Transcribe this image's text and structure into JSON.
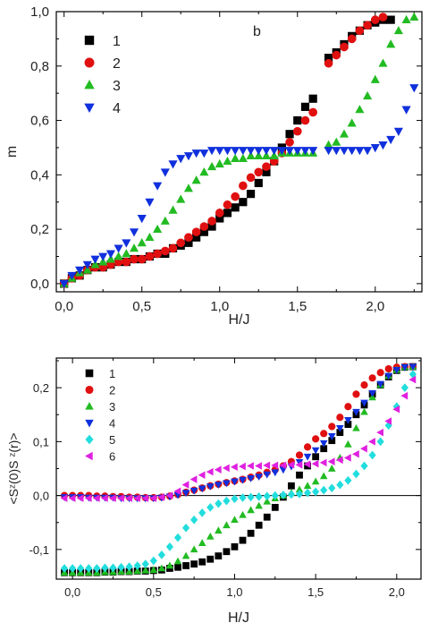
{
  "chart_data": [
    {
      "type": "scatter",
      "panel_label": "b",
      "xlabel": "H/J",
      "ylabel": "m",
      "xlim": [
        -0.05,
        2.3
      ],
      "ylim": [
        -0.03,
        1.0
      ],
      "xticks": [
        "0,0",
        "0,5",
        "1,0",
        "1,5",
        "2,0"
      ],
      "yticks": [
        "0,0",
        "0,2",
        "0,4",
        "0,6",
        "0,8",
        "1,0"
      ],
      "legend_position": "top-left",
      "series": [
        {
          "name": "1",
          "color": "#000000",
          "marker": "square",
          "x": [
            0.0,
            0.05,
            0.1,
            0.15,
            0.2,
            0.25,
            0.3,
            0.35,
            0.4,
            0.45,
            0.5,
            0.55,
            0.6,
            0.65,
            0.7,
            0.75,
            0.8,
            0.85,
            0.9,
            0.95,
            1.0,
            1.05,
            1.1,
            1.15,
            1.2,
            1.25,
            1.3,
            1.35,
            1.4,
            1.45,
            1.5,
            1.55,
            1.6,
            1.7,
            1.75,
            1.8,
            1.85,
            1.9,
            1.95,
            2.0,
            2.05,
            2.1
          ],
          "y": [
            0.0,
            0.02,
            0.03,
            0.05,
            0.06,
            0.06,
            0.07,
            0.08,
            0.08,
            0.09,
            0.09,
            0.1,
            0.11,
            0.11,
            0.13,
            0.14,
            0.15,
            0.17,
            0.19,
            0.21,
            0.24,
            0.26,
            0.28,
            0.3,
            0.33,
            0.37,
            0.41,
            0.45,
            0.5,
            0.55,
            0.6,
            0.65,
            0.68,
            0.83,
            0.85,
            0.88,
            0.91,
            0.93,
            0.95,
            0.96,
            0.97,
            0.97
          ]
        },
        {
          "name": "2",
          "color": "#e01010",
          "marker": "circle",
          "x": [
            0.0,
            0.05,
            0.1,
            0.15,
            0.2,
            0.25,
            0.3,
            0.35,
            0.4,
            0.45,
            0.5,
            0.55,
            0.6,
            0.65,
            0.7,
            0.75,
            0.8,
            0.85,
            0.9,
            0.95,
            1.0,
            1.05,
            1.1,
            1.15,
            1.2,
            1.25,
            1.3,
            1.35,
            1.4,
            1.45,
            1.5,
            1.55,
            1.6,
            1.7,
            1.75,
            1.8,
            1.85,
            1.9,
            1.95,
            2.0,
            2.05
          ],
          "y": [
            0.0,
            0.02,
            0.03,
            0.05,
            0.06,
            0.06,
            0.07,
            0.08,
            0.08,
            0.09,
            0.09,
            0.1,
            0.11,
            0.12,
            0.13,
            0.15,
            0.17,
            0.19,
            0.21,
            0.23,
            0.26,
            0.29,
            0.32,
            0.36,
            0.39,
            0.41,
            0.43,
            0.45,
            0.48,
            0.52,
            0.56,
            0.6,
            0.63,
            0.81,
            0.84,
            0.87,
            0.9,
            0.93,
            0.95,
            0.97,
            0.98
          ]
        },
        {
          "name": "3",
          "color": "#22bb22",
          "marker": "triangle-up",
          "x": [
            0.0,
            0.05,
            0.1,
            0.15,
            0.2,
            0.25,
            0.3,
            0.35,
            0.4,
            0.45,
            0.5,
            0.55,
            0.6,
            0.65,
            0.7,
            0.75,
            0.8,
            0.85,
            0.9,
            0.95,
            1.0,
            1.05,
            1.1,
            1.15,
            1.2,
            1.25,
            1.3,
            1.35,
            1.4,
            1.45,
            1.5,
            1.55,
            1.6,
            1.7,
            1.75,
            1.8,
            1.85,
            1.9,
            1.95,
            2.0,
            2.05,
            2.1,
            2.15,
            2.2,
            2.25
          ],
          "y": [
            0.0,
            0.02,
            0.04,
            0.05,
            0.07,
            0.08,
            0.09,
            0.1,
            0.11,
            0.13,
            0.15,
            0.17,
            0.2,
            0.23,
            0.27,
            0.31,
            0.35,
            0.38,
            0.41,
            0.43,
            0.44,
            0.45,
            0.46,
            0.46,
            0.47,
            0.47,
            0.47,
            0.47,
            0.48,
            0.48,
            0.48,
            0.48,
            0.48,
            0.51,
            0.52,
            0.55,
            0.59,
            0.64,
            0.69,
            0.75,
            0.81,
            0.88,
            0.93,
            0.97,
            0.98
          ]
        },
        {
          "name": "4",
          "color": "#1030dd",
          "marker": "triangle-down",
          "x": [
            0.0,
            0.05,
            0.1,
            0.15,
            0.2,
            0.25,
            0.3,
            0.35,
            0.4,
            0.45,
            0.5,
            0.55,
            0.6,
            0.65,
            0.7,
            0.75,
            0.8,
            0.85,
            0.9,
            0.95,
            1.0,
            1.05,
            1.1,
            1.15,
            1.2,
            1.25,
            1.3,
            1.35,
            1.4,
            1.45,
            1.5,
            1.55,
            1.6,
            1.7,
            1.75,
            1.8,
            1.85,
            1.9,
            1.95,
            2.0,
            2.05,
            2.1,
            2.15,
            2.2,
            2.25
          ],
          "y": [
            0.0,
            0.03,
            0.05,
            0.07,
            0.09,
            0.1,
            0.11,
            0.13,
            0.15,
            0.19,
            0.24,
            0.3,
            0.36,
            0.41,
            0.44,
            0.46,
            0.47,
            0.48,
            0.48,
            0.49,
            0.49,
            0.49,
            0.49,
            0.49,
            0.49,
            0.49,
            0.49,
            0.49,
            0.49,
            0.49,
            0.49,
            0.49,
            0.49,
            0.49,
            0.49,
            0.49,
            0.49,
            0.49,
            0.49,
            0.5,
            0.51,
            0.53,
            0.56,
            0.64,
            0.72
          ]
        }
      ]
    },
    {
      "type": "scatter",
      "xlabel": "H/J",
      "ylabel": "<Sᶻ(0)S ᶻ(r)>",
      "xlim": [
        -0.1,
        2.15
      ],
      "ylim": [
        -0.155,
        0.255
      ],
      "xticks": [
        "0,0",
        "0,5",
        "1,0",
        "1,5",
        "2,0"
      ],
      "yticks": [
        "-0,1",
        "0,0",
        "0,1",
        "0,2"
      ],
      "grid": false,
      "hline_at_y": 0,
      "legend_position": "top-left",
      "series": [
        {
          "name": "1",
          "color": "#000000",
          "marker": "square",
          "x": [
            -0.05,
            0.0,
            0.05,
            0.1,
            0.15,
            0.2,
            0.25,
            0.3,
            0.35,
            0.4,
            0.45,
            0.5,
            0.55,
            0.6,
            0.65,
            0.7,
            0.75,
            0.8,
            0.85,
            0.9,
            0.95,
            1.0,
            1.05,
            1.1,
            1.15,
            1.2,
            1.25,
            1.3,
            1.35,
            1.4,
            1.45,
            1.5,
            1.55,
            1.6,
            1.65,
            1.7,
            1.75,
            1.8,
            1.85,
            1.9,
            1.95,
            2.0,
            2.05,
            2.1
          ],
          "y": [
            -0.143,
            -0.143,
            -0.143,
            -0.143,
            -0.143,
            -0.142,
            -0.142,
            -0.141,
            -0.141,
            -0.14,
            -0.14,
            -0.139,
            -0.138,
            -0.135,
            -0.133,
            -0.13,
            -0.127,
            -0.123,
            -0.118,
            -0.112,
            -0.104,
            -0.095,
            -0.083,
            -0.07,
            -0.055,
            -0.04,
            -0.022,
            -0.003,
            0.018,
            0.038,
            0.055,
            0.072,
            0.087,
            0.102,
            0.117,
            0.132,
            0.15,
            0.168,
            0.188,
            0.205,
            0.22,
            0.232,
            0.238,
            0.239
          ]
        },
        {
          "name": "2",
          "color": "#e01010",
          "marker": "circle",
          "x": [
            -0.05,
            0.0,
            0.05,
            0.1,
            0.15,
            0.2,
            0.25,
            0.3,
            0.35,
            0.4,
            0.45,
            0.5,
            0.55,
            0.6,
            0.65,
            0.7,
            0.75,
            0.8,
            0.85,
            0.9,
            0.95,
            1.0,
            1.05,
            1.1,
            1.15,
            1.2,
            1.25,
            1.3,
            1.35,
            1.4,
            1.45,
            1.5,
            1.55,
            1.6,
            1.65,
            1.7,
            1.75,
            1.8,
            1.85,
            1.9,
            1.95,
            2.0,
            2.05,
            2.1
          ],
          "y": [
            0.0,
            0.0,
            0.0,
            0.0,
            -0.001,
            -0.001,
            -0.002,
            -0.002,
            -0.003,
            -0.003,
            -0.004,
            -0.004,
            -0.003,
            -0.001,
            0.002,
            0.006,
            0.01,
            0.014,
            0.018,
            0.021,
            0.024,
            0.027,
            0.03,
            0.034,
            0.038,
            0.043,
            0.048,
            0.055,
            0.063,
            0.075,
            0.09,
            0.105,
            0.115,
            0.128,
            0.145,
            0.165,
            0.188,
            0.205,
            0.218,
            0.228,
            0.235,
            0.238,
            0.239,
            0.239
          ]
        },
        {
          "name": "3",
          "color": "#22bb22",
          "marker": "triangle-up",
          "x": [
            -0.05,
            0.0,
            0.05,
            0.1,
            0.15,
            0.2,
            0.25,
            0.3,
            0.35,
            0.4,
            0.45,
            0.5,
            0.55,
            0.6,
            0.65,
            0.7,
            0.75,
            0.8,
            0.85,
            0.9,
            0.95,
            1.0,
            1.05,
            1.1,
            1.15,
            1.2,
            1.25,
            1.3,
            1.35,
            1.4,
            1.45,
            1.5,
            1.55,
            1.6,
            1.65,
            1.7,
            1.75,
            1.8,
            1.85,
            1.9,
            1.95,
            2.0,
            2.05,
            2.1
          ],
          "y": [
            -0.143,
            -0.143,
            -0.143,
            -0.143,
            -0.143,
            -0.142,
            -0.142,
            -0.141,
            -0.141,
            -0.14,
            -0.139,
            -0.138,
            -0.135,
            -0.13,
            -0.122,
            -0.112,
            -0.1,
            -0.088,
            -0.076,
            -0.065,
            -0.055,
            -0.045,
            -0.036,
            -0.027,
            -0.019,
            -0.011,
            -0.005,
            0.0,
            0.005,
            0.011,
            0.018,
            0.026,
            0.036,
            0.05,
            0.07,
            0.095,
            0.125,
            0.155,
            0.182,
            0.205,
            0.222,
            0.233,
            0.238,
            0.239
          ]
        },
        {
          "name": "4",
          "color": "#1030dd",
          "marker": "triangle-down",
          "x": [
            -0.05,
            0.0,
            0.05,
            0.1,
            0.15,
            0.2,
            0.25,
            0.3,
            0.35,
            0.4,
            0.45,
            0.5,
            0.55,
            0.6,
            0.65,
            0.7,
            0.75,
            0.8,
            0.85,
            0.9,
            0.95,
            1.0,
            1.05,
            1.1,
            1.15,
            1.2,
            1.25,
            1.3,
            1.35,
            1.4,
            1.45,
            1.5,
            1.55,
            1.6,
            1.65,
            1.7,
            1.75,
            1.8,
            1.85,
            1.9,
            1.95,
            2.0,
            2.05,
            2.1
          ],
          "y": [
            -0.003,
            -0.003,
            -0.003,
            -0.004,
            -0.004,
            -0.004,
            -0.004,
            -0.005,
            -0.005,
            -0.005,
            -0.005,
            -0.005,
            -0.004,
            -0.002,
            0.001,
            0.005,
            0.009,
            0.013,
            0.017,
            0.02,
            0.023,
            0.026,
            0.029,
            0.032,
            0.035,
            0.039,
            0.043,
            0.048,
            0.054,
            0.062,
            0.072,
            0.084,
            0.097,
            0.11,
            0.125,
            0.14,
            0.155,
            0.172,
            0.19,
            0.207,
            0.222,
            0.233,
            0.238,
            0.239
          ]
        },
        {
          "name": "5",
          "color": "#22dddd",
          "marker": "diamond",
          "x": [
            -0.05,
            0.0,
            0.05,
            0.1,
            0.15,
            0.2,
            0.25,
            0.3,
            0.35,
            0.4,
            0.45,
            0.5,
            0.55,
            0.6,
            0.65,
            0.7,
            0.75,
            0.8,
            0.85,
            0.9,
            0.95,
            1.0,
            1.05,
            1.1,
            1.15,
            1.2,
            1.25,
            1.3,
            1.35,
            1.4,
            1.45,
            1.5,
            1.55,
            1.6,
            1.65,
            1.7,
            1.75,
            1.8,
            1.85,
            1.9,
            1.95,
            2.0,
            2.05,
            2.1
          ],
          "y": [
            -0.135,
            -0.135,
            -0.135,
            -0.135,
            -0.135,
            -0.134,
            -0.134,
            -0.133,
            -0.132,
            -0.13,
            -0.127,
            -0.121,
            -0.11,
            -0.095,
            -0.078,
            -0.06,
            -0.045,
            -0.032,
            -0.022,
            -0.015,
            -0.01,
            -0.006,
            -0.004,
            -0.003,
            -0.002,
            -0.001,
            0.0,
            0.001,
            0.002,
            0.003,
            0.005,
            0.007,
            0.01,
            0.014,
            0.02,
            0.028,
            0.04,
            0.055,
            0.075,
            0.1,
            0.13,
            0.165,
            0.2,
            0.225
          ]
        },
        {
          "name": "6",
          "color": "#e020e0",
          "marker": "triangle-left",
          "x": [
            -0.05,
            0.0,
            0.05,
            0.1,
            0.15,
            0.2,
            0.25,
            0.3,
            0.35,
            0.4,
            0.45,
            0.5,
            0.55,
            0.6,
            0.65,
            0.7,
            0.75,
            0.8,
            0.85,
            0.9,
            0.95,
            1.0,
            1.05,
            1.1,
            1.15,
            1.2,
            1.25,
            1.3,
            1.35,
            1.4,
            1.45,
            1.5,
            1.55,
            1.6,
            1.65,
            1.7,
            1.75,
            1.8,
            1.85,
            1.9,
            1.95,
            2.0,
            2.05,
            2.1
          ],
          "y": [
            -0.005,
            -0.005,
            -0.005,
            -0.005,
            -0.005,
            -0.005,
            -0.005,
            -0.005,
            -0.005,
            -0.005,
            -0.005,
            -0.005,
            -0.003,
            0.0,
            0.008,
            0.02,
            0.03,
            0.038,
            0.044,
            0.048,
            0.051,
            0.053,
            0.054,
            0.055,
            0.055,
            0.056,
            0.056,
            0.056,
            0.057,
            0.057,
            0.058,
            0.059,
            0.061,
            0.063,
            0.066,
            0.07,
            0.077,
            0.087,
            0.1,
            0.117,
            0.138,
            0.16,
            0.185,
            0.215
          ]
        }
      ]
    }
  ]
}
